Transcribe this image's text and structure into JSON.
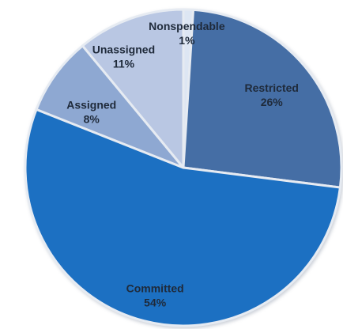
{
  "chart_data": {
    "type": "pie",
    "title": "",
    "start_angle_deg": 0,
    "direction": "clockwise",
    "slices": [
      {
        "label": "Nonspendable",
        "value": 1,
        "value_label": "1%",
        "color": "#dde6f3"
      },
      {
        "label": "Restricted",
        "value": 26,
        "value_label": "26%",
        "color": "#456ea5"
      },
      {
        "label": "Committed",
        "value": 54,
        "value_label": "54%",
        "color": "#1c6fc2"
      },
      {
        "label": "Assigned",
        "value": 8,
        "value_label": "8%",
        "color": "#8ea8d2"
      },
      {
        "label": "Unassigned",
        "value": 11,
        "value_label": "11%",
        "color": "#b9c7e3"
      }
    ],
    "legend": "none",
    "slice_border_color": "#e6ebf2"
  }
}
